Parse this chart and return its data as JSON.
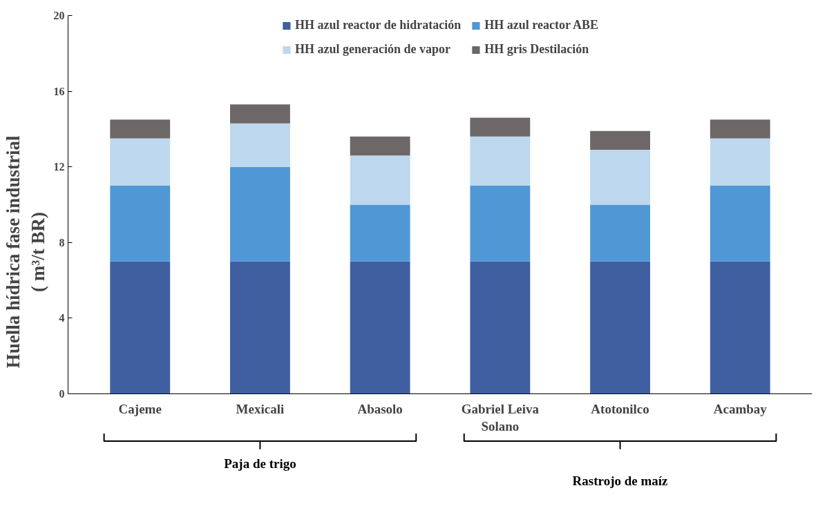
{
  "chart_data": {
    "type": "bar",
    "stacked": true,
    "ylabel": "Huella hídrica fase industrial\n( m³/t BR)",
    "categories": [
      "Cajeme",
      "Mexicali",
      "Abasolo",
      "Gabriel Leiva Solano",
      "Atotonilco",
      "Acambay"
    ],
    "series": [
      {
        "name": "HH azul reactor de hidratación",
        "color": "#3f5fa0",
        "values": [
          7,
          7,
          7,
          7,
          7,
          7
        ]
      },
      {
        "name": "HH azul reactor ABE",
        "color": "#5097d5",
        "values": [
          4,
          5,
          3,
          4,
          3,
          4
        ]
      },
      {
        "name": "HH azul generación de vapor",
        "color": "#bdd7ee",
        "values": [
          2.5,
          2.3,
          2.6,
          2.6,
          2.9,
          2.5
        ]
      },
      {
        "name": "HH gris Destilación",
        "color": "#6e6767",
        "values": [
          1.0,
          1.0,
          1.0,
          1.0,
          1.0,
          1.0
        ]
      }
    ],
    "ylim": [
      0,
      20
    ],
    "yticks": [
      0,
      4,
      8,
      12,
      16,
      20
    ],
    "grid": false,
    "legend": "top",
    "annotations": [
      "Paja de trigo",
      "Rastrojo de maíz"
    ]
  }
}
